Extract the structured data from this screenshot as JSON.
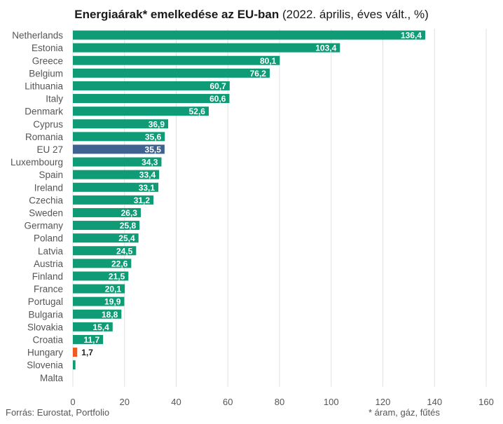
{
  "header": {
    "title_bold": "Energiaárak* emelkedése az EU-ban",
    "title_rest": "(2022. április, éves vált., %)"
  },
  "footer": {
    "source": "Forrás: Eurostat, Portfolio",
    "note": "* áram, gáz, fűtés"
  },
  "colors": {
    "default": "#0e9b76",
    "eu": "#3f6290",
    "hungary": "#f05a1e",
    "grid": "#e0e0e0",
    "label_inside": "#ffffff",
    "label_outside": "#222222"
  },
  "chart_data": {
    "type": "bar",
    "orientation": "horizontal",
    "categories": [
      "Netherlands",
      "Estonia",
      "Greece",
      "Belgium",
      "Lithuania",
      "Italy",
      "Denmark",
      "Cyprus",
      "Romania",
      "EU 27",
      "Luxembourg",
      "Spain",
      "Ireland",
      "Czechia",
      "Sweden",
      "Germany",
      "Poland",
      "Latvia",
      "Austria",
      "Finland",
      "France",
      "Portugal",
      "Bulgaria",
      "Slovakia",
      "Croatia",
      "Hungary",
      "Slovenia",
      "Malta"
    ],
    "values": [
      136.4,
      103.4,
      80.1,
      76.2,
      60.7,
      60.6,
      52.6,
      36.9,
      35.6,
      35.5,
      34.3,
      33.4,
      33.1,
      31.2,
      26.3,
      25.8,
      25.4,
      24.5,
      22.6,
      21.5,
      20.1,
      19.9,
      18.8,
      15.4,
      11.7,
      1.7,
      1.0,
      0
    ],
    "value_labels": [
      "136,4",
      "103,4",
      "80,1",
      "76,2",
      "60,7",
      "60,6",
      "52,6",
      "36,9",
      "35,6",
      "35,5",
      "34,3",
      "33,4",
      "33,1",
      "31,2",
      "26,3",
      "25,8",
      "25,4",
      "24,5",
      "22,6",
      "21,5",
      "20,1",
      "19,9",
      "18,8",
      "15,4",
      "11,7",
      "1,7",
      "",
      ""
    ],
    "highlight": {
      "EU 27": "eu",
      "Hungary": "hungary"
    },
    "xlim": [
      0,
      160
    ],
    "xticks": [
      0,
      20,
      40,
      60,
      80,
      100,
      120,
      140,
      160
    ],
    "grid": true
  }
}
